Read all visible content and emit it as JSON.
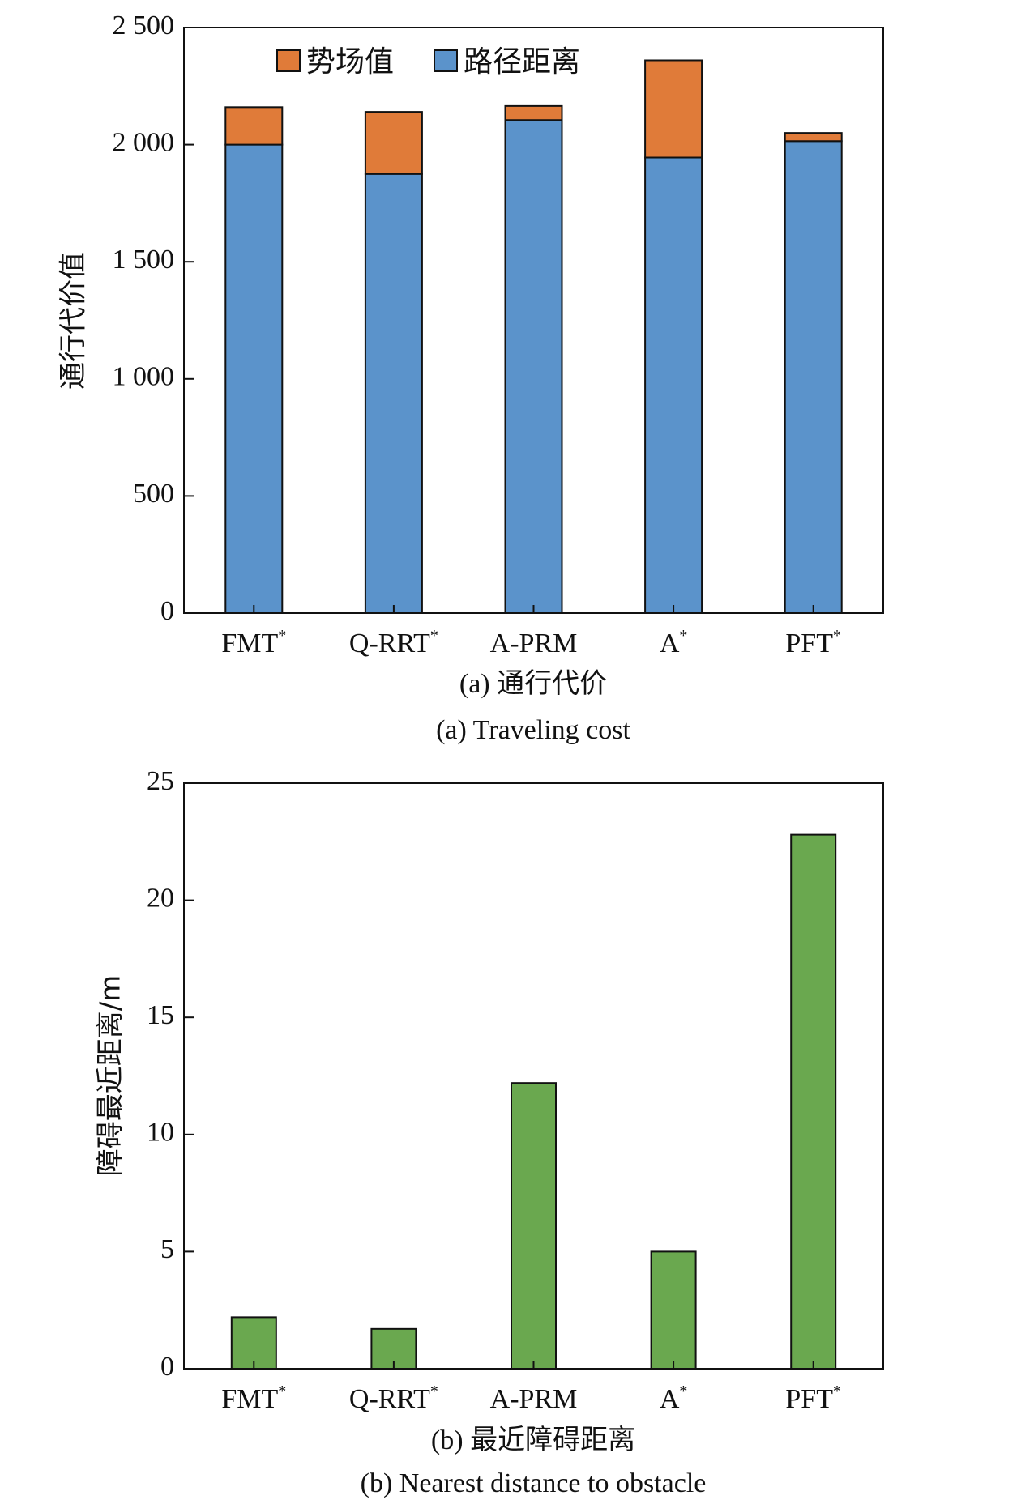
{
  "chart_data": [
    {
      "type": "bar",
      "stacked": true,
      "categories": [
        "FMT",
        "Q-RRT",
        "A-PRM",
        "A",
        "PFT"
      ],
      "category_superscripts": [
        "*",
        "*",
        "",
        "*",
        "*"
      ],
      "ylabel": "通行代价值",
      "ylim": [
        0,
        2500
      ],
      "yticks": [
        0,
        500,
        1000,
        1500,
        2000,
        2500
      ],
      "ytick_labels": [
        "0",
        "500",
        "1 000",
        "1 500",
        "2 000",
        "2 500"
      ],
      "series": [
        {
          "name": "路径距离",
          "color": "#5b93cb",
          "values": [
            2000,
            1875,
            2105,
            1945,
            2015
          ]
        },
        {
          "name": "势场值",
          "color": "#e07b39",
          "values": [
            160,
            265,
            60,
            415,
            35
          ]
        }
      ],
      "legend_position": "top",
      "caption_cn": "(a) 通行代价",
      "caption_en": "(a) Traveling cost"
    },
    {
      "type": "bar",
      "categories": [
        "FMT",
        "Q-RRT",
        "A-PRM",
        "A",
        "PFT"
      ],
      "category_superscripts": [
        "*",
        "*",
        "",
        "*",
        "*"
      ],
      "ylabel": "障碍最近距离/m",
      "ylim": [
        0,
        25
      ],
      "yticks": [
        0,
        5,
        10,
        15,
        20,
        25
      ],
      "ytick_labels": [
        "0",
        "5",
        "10",
        "15",
        "20",
        "25"
      ],
      "series": [
        {
          "color": "#6aa84f",
          "values": [
            2.2,
            1.7,
            12.2,
            5.0,
            22.8
          ]
        }
      ],
      "caption_cn": "(b) 最近障碍距离",
      "caption_en": "(b) Nearest distance to obstacle"
    }
  ]
}
